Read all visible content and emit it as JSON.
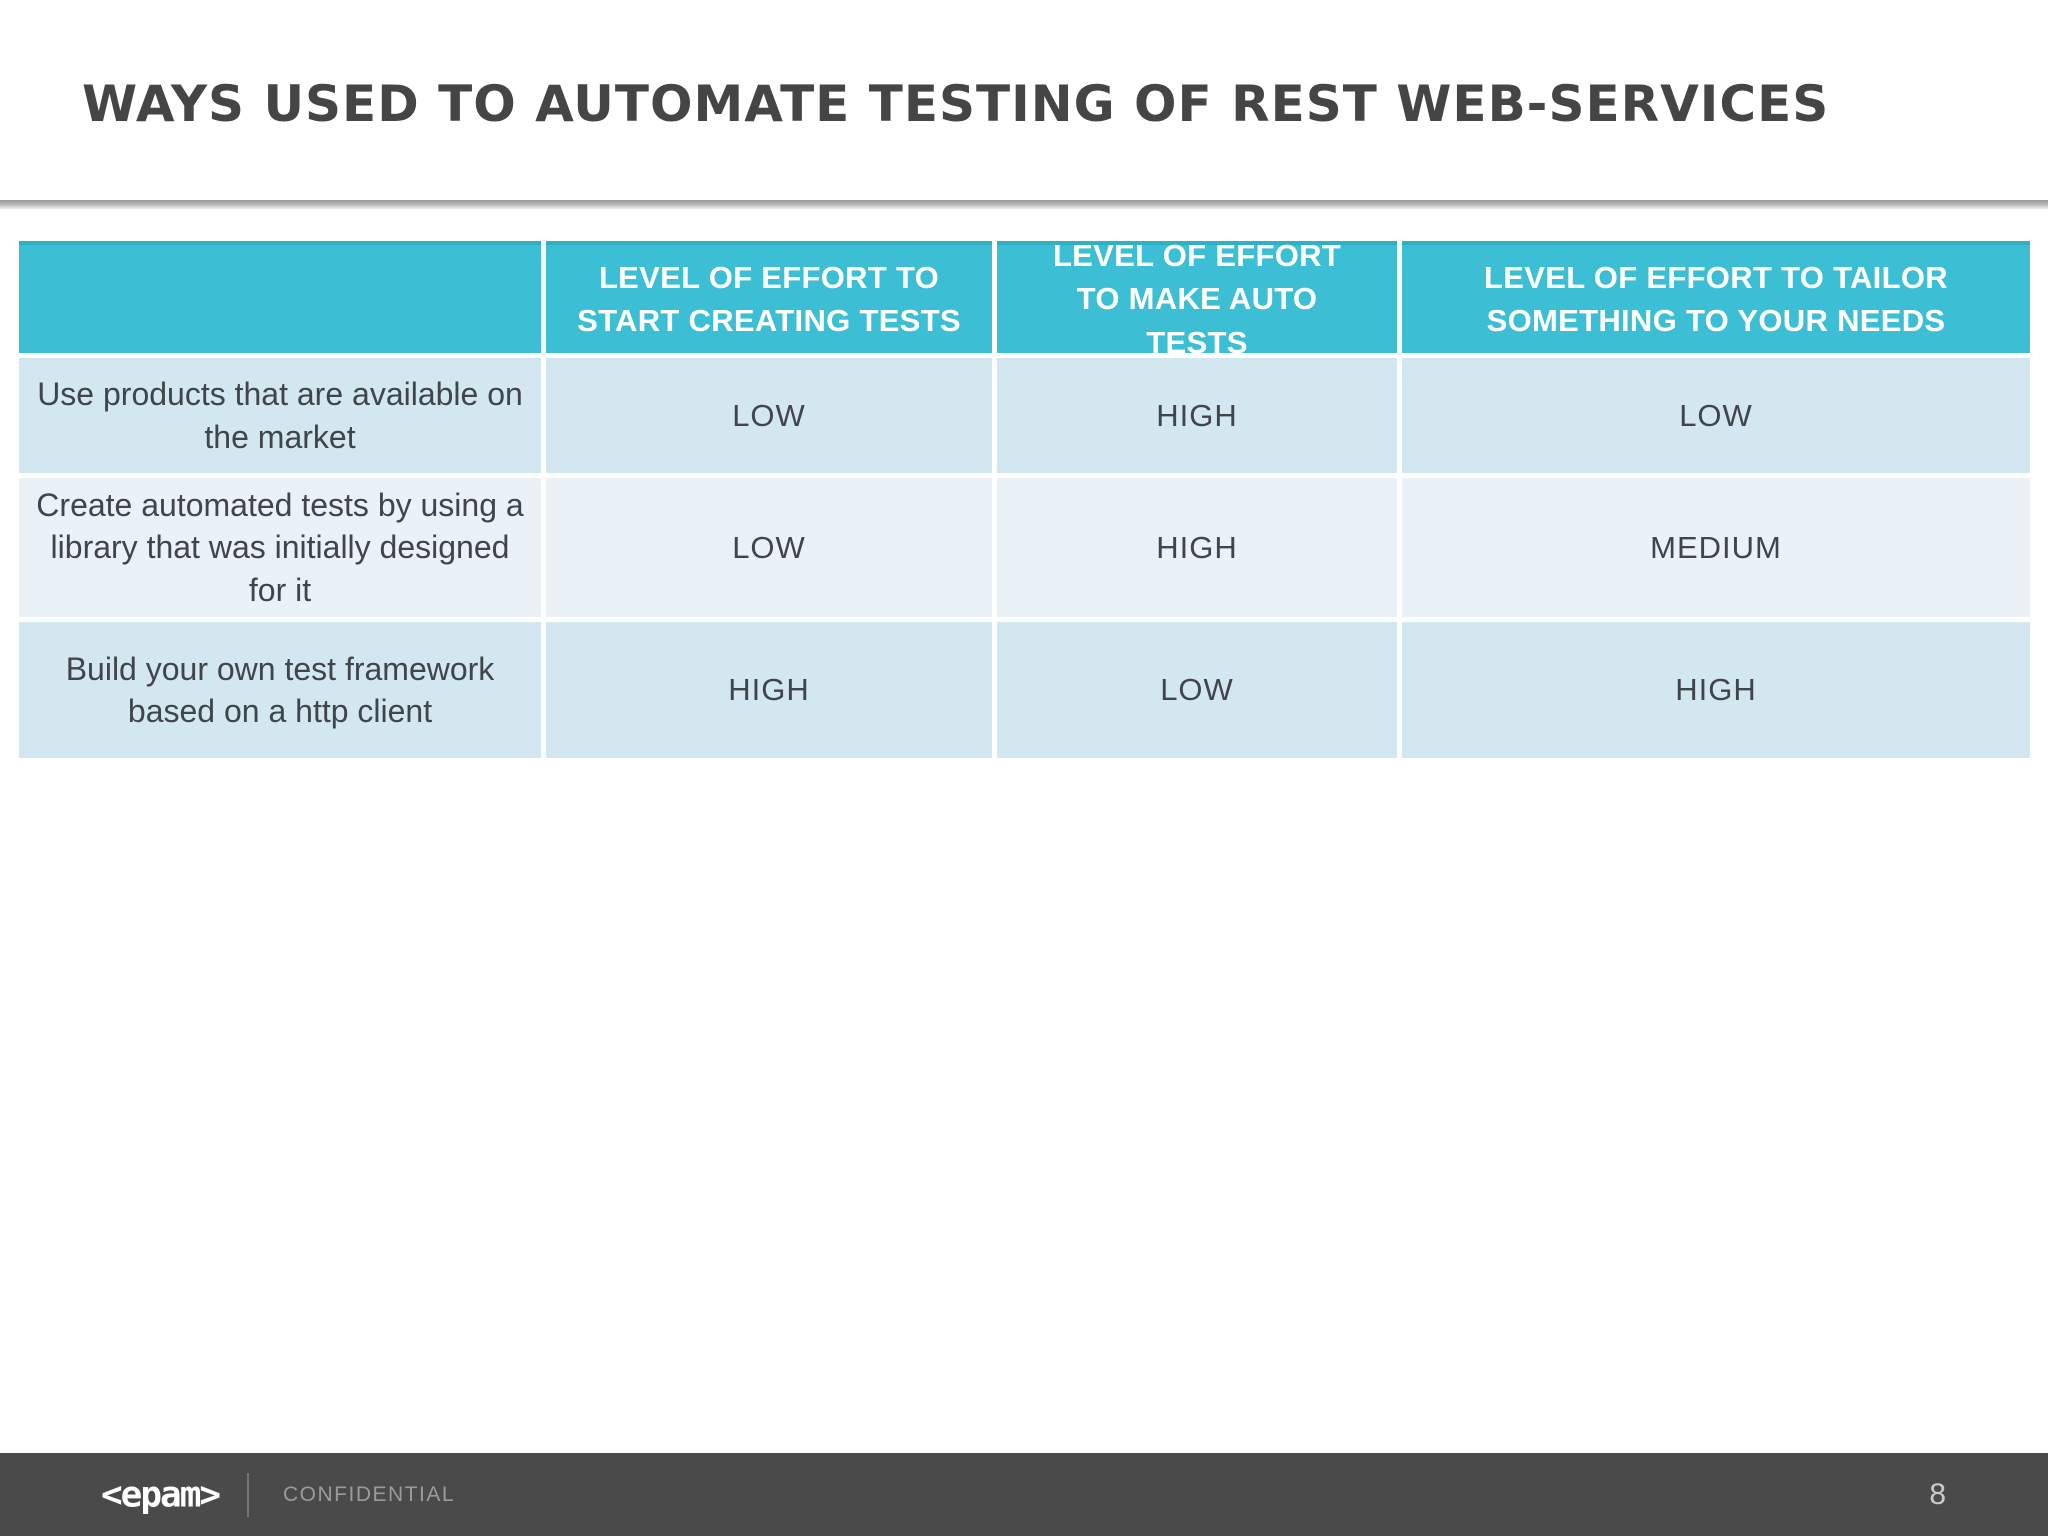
{
  "slide": {
    "title": "WAYS USED TO AUTOMATE TESTING OF REST WEB-SERVICES",
    "page_number": "8"
  },
  "table": {
    "headers": [
      "",
      "LEVEL OF EFFORT TO START CREATING TESTS",
      "LEVEL OF EFFORT TO MAKE AUTO TESTS",
      "LEVEL OF EFFORT TO TAILOR SOMETHING TO YOUR NEEDS"
    ],
    "rows": [
      {
        "label": "Use products that are available on the market",
        "values": [
          "LOW",
          "HIGH",
          "LOW"
        ]
      },
      {
        "label": "Create automated tests by using a library that was initially designed for it",
        "values": [
          "LOW",
          "HIGH",
          "MEDIUM"
        ]
      },
      {
        "label": "Build your own test framework based on a http client",
        "values": [
          "HIGH",
          "LOW",
          "HIGH"
        ]
      }
    ]
  },
  "footer": {
    "logo_text": "<epam>",
    "confidential_label": "CONFIDENTIAL"
  },
  "colors": {
    "header_teal": "#3CBFD5",
    "row_light_blue": "#D2E7EF",
    "row_pale_blue": "#EAF2F8",
    "footer_gray": "#4A4A4A",
    "title_gray": "#454545",
    "cell_text": "#3F454B"
  }
}
